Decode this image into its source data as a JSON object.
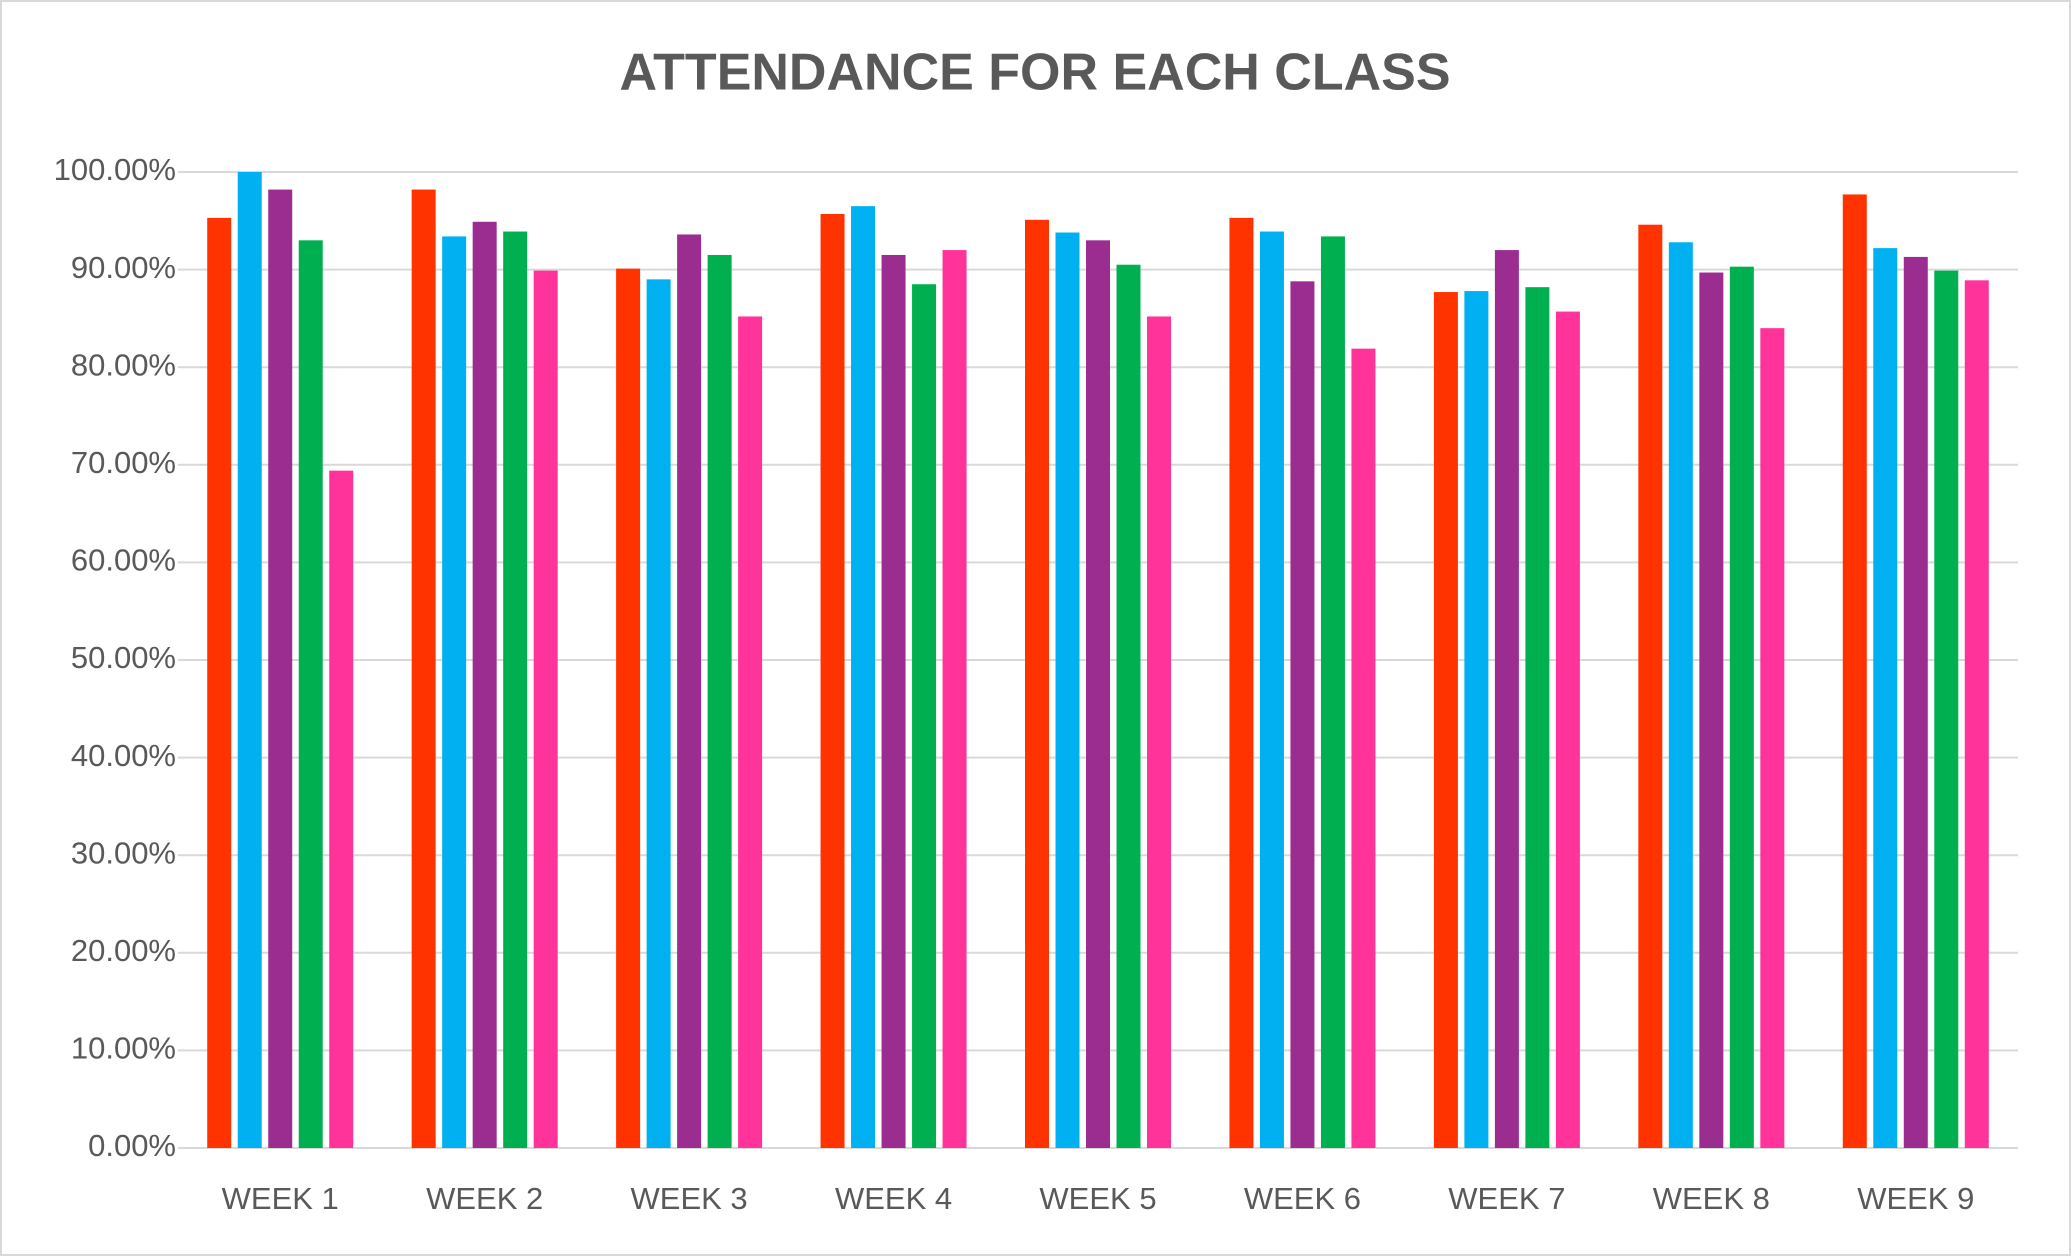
{
  "chart_data": {
    "type": "bar",
    "title": "ATTENDANCE FOR EACH CLASS",
    "categories": [
      "WEEK 1",
      "WEEK 2",
      "WEEK 3",
      "WEEK 4",
      "WEEK 5",
      "WEEK 6",
      "WEEK 7",
      "WEEK 8",
      "WEEK 9"
    ],
    "series": [
      {
        "color": "#ff3300",
        "values": [
          95.3,
          98.2,
          90.1,
          95.7,
          95.1,
          95.3,
          87.7,
          94.6,
          97.7
        ]
      },
      {
        "color": "#00b0f0",
        "values": [
          100,
          93.4,
          89.0,
          96.5,
          93.8,
          93.9,
          87.8,
          92.8,
          92.2
        ]
      },
      {
        "color": "#9b2d91",
        "values": [
          98.2,
          94.9,
          93.6,
          91.5,
          93.0,
          88.8,
          92.0,
          89.7,
          91.3
        ]
      },
      {
        "color": "#00b050",
        "values": [
          93.0,
          93.9,
          91.5,
          88.5,
          90.5,
          93.4,
          88.2,
          90.3,
          89.9
        ]
      },
      {
        "color": "#ff3399",
        "values": [
          69.4,
          89.9,
          85.2,
          92.0,
          85.2,
          81.9,
          85.7,
          84.0,
          88.9
        ]
      }
    ],
    "ylim": [
      0,
      100
    ],
    "yticks": [
      {
        "value": 0,
        "label": "0.00%"
      },
      {
        "value": 10,
        "label": "10.00%"
      },
      {
        "value": 20,
        "label": "20.00%"
      },
      {
        "value": 30,
        "label": "30.00%"
      },
      {
        "value": 40,
        "label": "40.00%"
      },
      {
        "value": 50,
        "label": "50.00%"
      },
      {
        "value": 60,
        "label": "60.00%"
      },
      {
        "value": 70,
        "label": "70.00%"
      },
      {
        "value": 80,
        "label": "80.00%"
      },
      {
        "value": 90,
        "label": "90.00%"
      },
      {
        "value": 100,
        "label": "100.00%"
      }
    ],
    "grid": true
  }
}
